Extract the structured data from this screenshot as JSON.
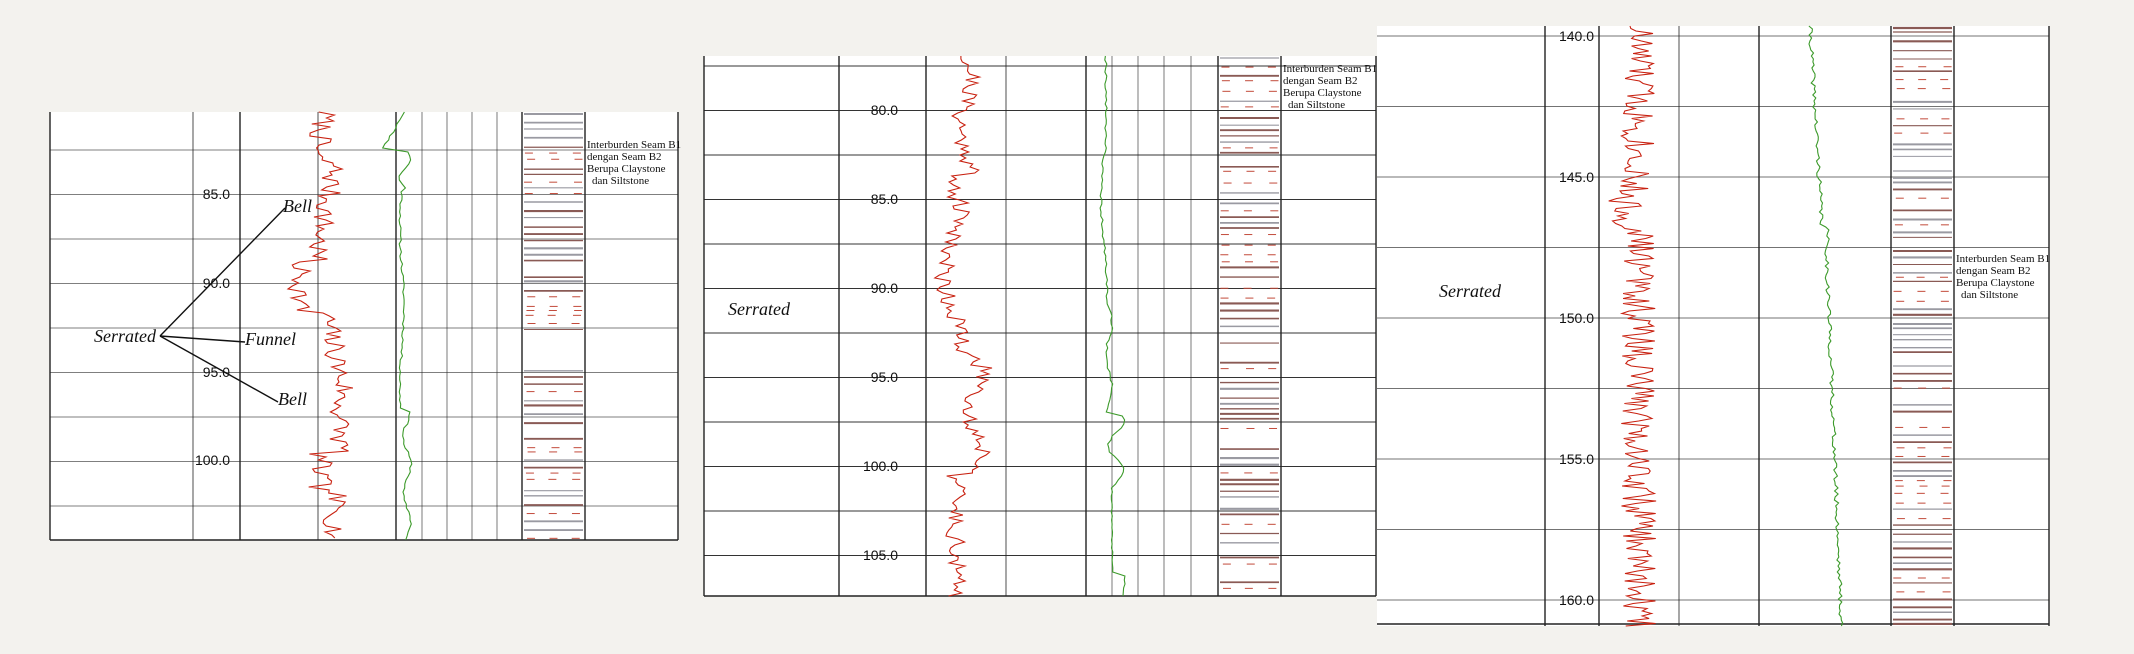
{
  "colors": {
    "background": "#f3f2ee",
    "gamma_ray": "#c8200f",
    "second_log": "#3c9a2a",
    "grid": "#555555",
    "lithology_stripe": "#8a5a55",
    "lithology_accent": "#c24a3a"
  },
  "panels": [
    {
      "depth_ticks": [
        "85.0",
        "90.0",
        "95.0",
        "100.0"
      ],
      "serrated_label": "Serrated",
      "annotations": [
        "Bell",
        "Funnel",
        "Bell"
      ],
      "lithology_note": [
        "Interburden Seam B1",
        "dengan Seam B2",
        "Berupa Claystone",
        "dan Siltstone"
      ]
    },
    {
      "depth_ticks": [
        "80.0",
        "85.0",
        "90.0",
        "95.0",
        "100.0",
        "105.0"
      ],
      "serrated_label": "Serrated",
      "lithology_note": [
        "Interburden Seam B1",
        "dengan Seam B2",
        "Berupa Claystone",
        "dan Siltstone"
      ]
    },
    {
      "depth_ticks": [
        "140.0",
        "145.0",
        "150.0",
        "155.0",
        "160.0"
      ],
      "serrated_label": "Serrated",
      "lithology_note": [
        "Interburden Seam B1",
        "dengan Seam B2",
        "Berupa Claystone",
        "dan Siltstone"
      ]
    }
  ]
}
